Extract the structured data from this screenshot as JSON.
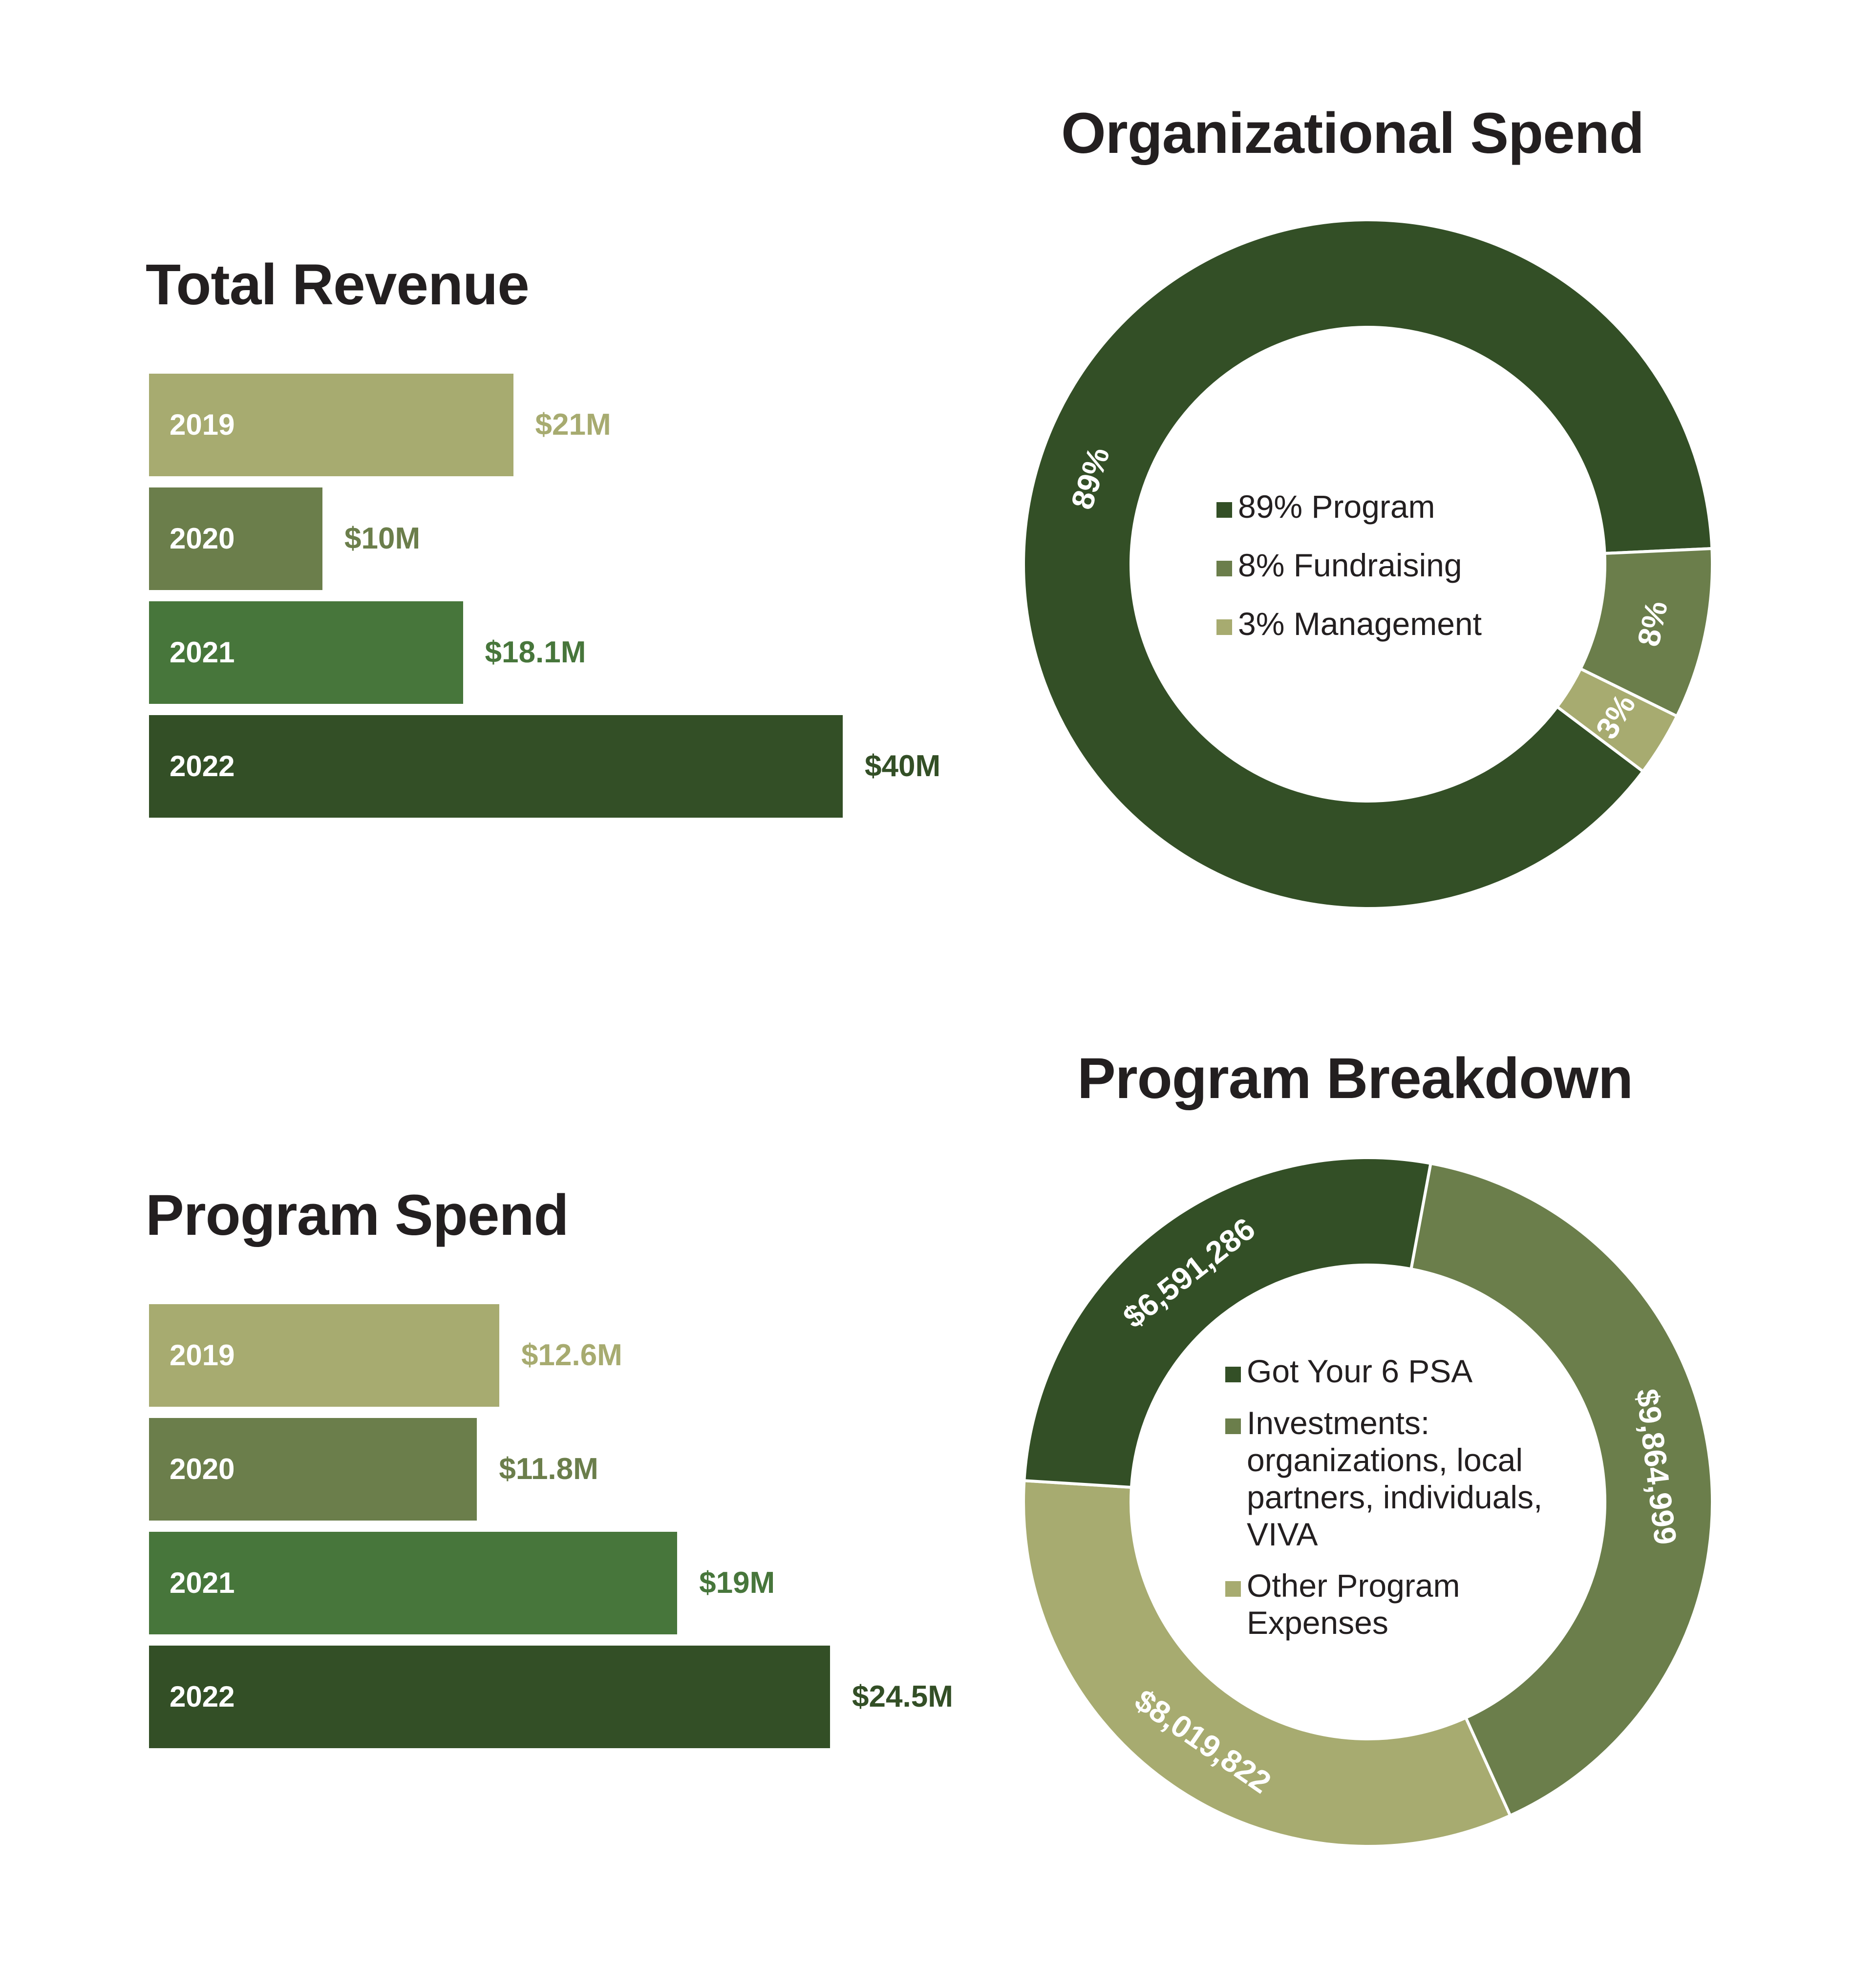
{
  "colors": {
    "c2019": "#a7ab70",
    "c2020": "#6b7e4b",
    "c2021": "#47763b",
    "c2022": "#334f26",
    "title": "#231f20"
  },
  "chart_data": [
    {
      "type": "bar",
      "title": "Total Revenue",
      "categories": [
        "2019",
        "2020",
        "2021",
        "2022"
      ],
      "values": [
        21,
        10,
        18.1,
        40
      ],
      "value_labels": [
        "$21M",
        "$10M",
        "$18.1M",
        "$40M"
      ],
      "unit": "$M",
      "orientation": "horizontal"
    },
    {
      "type": "pie",
      "title": "Organizational Spend",
      "categories": [
        "Program",
        "Fundraising",
        "Management"
      ],
      "values": [
        89,
        8,
        3
      ],
      "slice_labels": [
        "89%",
        "8%",
        "3%"
      ],
      "legend": [
        "89% Program",
        "8% Fundraising",
        "3% Management"
      ],
      "donut": true
    },
    {
      "type": "bar",
      "title": "Program Spend",
      "categories": [
        "2019",
        "2020",
        "2021",
        "2022"
      ],
      "values": [
        12.6,
        11.8,
        19,
        24.5
      ],
      "value_labels": [
        "$12.6M",
        "$11.8M",
        "$19M",
        "$24.5M"
      ],
      "unit": "$M",
      "orientation": "horizontal"
    },
    {
      "type": "pie",
      "title": "Program Breakdown",
      "categories": [
        "Got Your 6 PSA",
        "Investments: organizations, local partners, individuals, VIVA",
        "Other Program Expenses"
      ],
      "values": [
        9864999,
        8019822,
        6591286
      ],
      "slice_labels": [
        "$9,864,999",
        "$8,019,822",
        "$6,591,286"
      ],
      "legend": [
        "Got Your 6 PSA",
        "Investments: organizations, local partners, individuals, VIVA",
        "Other Program Expenses"
      ],
      "donut": true
    }
  ]
}
